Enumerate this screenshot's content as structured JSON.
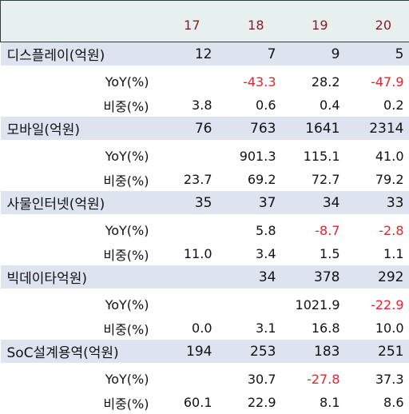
{
  "header": {
    "years": [
      "17",
      "18",
      "19",
      "20"
    ]
  },
  "groups": [
    {
      "label": "디스플레이(억원)",
      "values": [
        "12",
        "7",
        "9",
        "5"
      ],
      "yoy_label": "YoY(%)",
      "yoy": [
        "",
        "-43.3",
        "28.2",
        "-47.9"
      ],
      "share_label": "비중(%)",
      "share": [
        "3.8",
        "0.6",
        "0.4",
        "0.2"
      ]
    },
    {
      "label": "모바일(억원)",
      "values": [
        "76",
        "763",
        "1641",
        "2314"
      ],
      "yoy_label": "YoY(%)",
      "yoy": [
        "",
        "901.3",
        "115.1",
        "41.0"
      ],
      "share_label": "비중(%)",
      "share": [
        "23.7",
        "69.2",
        "72.7",
        "79.2"
      ]
    },
    {
      "label": "사물인터넷(억원)",
      "values": [
        "35",
        "37",
        "34",
        "33"
      ],
      "yoy_label": "YoY(%)",
      "yoy": [
        "",
        "5.8",
        "-8.7",
        "-2.8"
      ],
      "share_label": "비중(%)",
      "share": [
        "11.0",
        "3.4",
        "1.5",
        "1.1"
      ]
    },
    {
      "label": "빅데이타억원)",
      "values": [
        "",
        "34",
        "378",
        "292"
      ],
      "yoy_label": "YoY(%)",
      "yoy": [
        "",
        "",
        "1021.9",
        "-22.9"
      ],
      "share_label": "비중(%)",
      "share": [
        "0.0",
        "3.1",
        "16.8",
        "10.0"
      ]
    },
    {
      "label": "SoC설계용역(억원)",
      "values": [
        "194",
        "253",
        "183",
        "251"
      ],
      "yoy_label": "YoY(%)",
      "yoy": [
        "",
        "30.7",
        "-27.8",
        "37.3"
      ],
      "share_label": "비중(%)",
      "share": [
        "60.1",
        "22.9",
        "8.1",
        "8.6"
      ]
    }
  ],
  "colors": {
    "header_bg": "#e7f0ef",
    "category_bg": "#dde4ef",
    "year_text": "#8b1a1a",
    "negative_text": "#e8212b"
  }
}
